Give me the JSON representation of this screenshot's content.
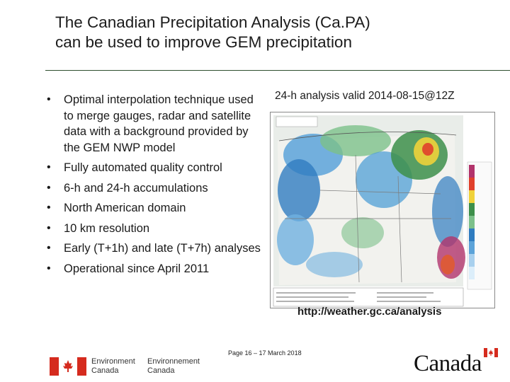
{
  "slide": {
    "title_line1": "The Canadian Precipitation Analysis (Ca.PA)",
    "title_line2": "can be used to improve GEM precipitation",
    "bullets": [
      "Optimal interpolation technique used to merge gauges, radar and satellite data with a background provided by the GEM NWP model",
      "Fully automated quality control",
      "6-h and 24-h accumulations",
      "North American domain",
      "10 km resolution",
      "Early (T+1h) and late (T+7h) analyses",
      "Operational since April 2011"
    ],
    "bullet_glyph": "•",
    "map_caption": "24-h analysis valid 2014-08-15@12Z",
    "map_icon": "precipitation-analysis-map",
    "url": "http://weather.gc.ca/analysis",
    "page_note": "Page 16 – 17 March 2018"
  },
  "footer": {
    "dept_en_line1": "Environment",
    "dept_en_line2": "Canada",
    "dept_fr_line1": "Environnement",
    "dept_fr_line2": "Canada",
    "wordmark": "Canada",
    "flag_color": "#d52b1e"
  }
}
